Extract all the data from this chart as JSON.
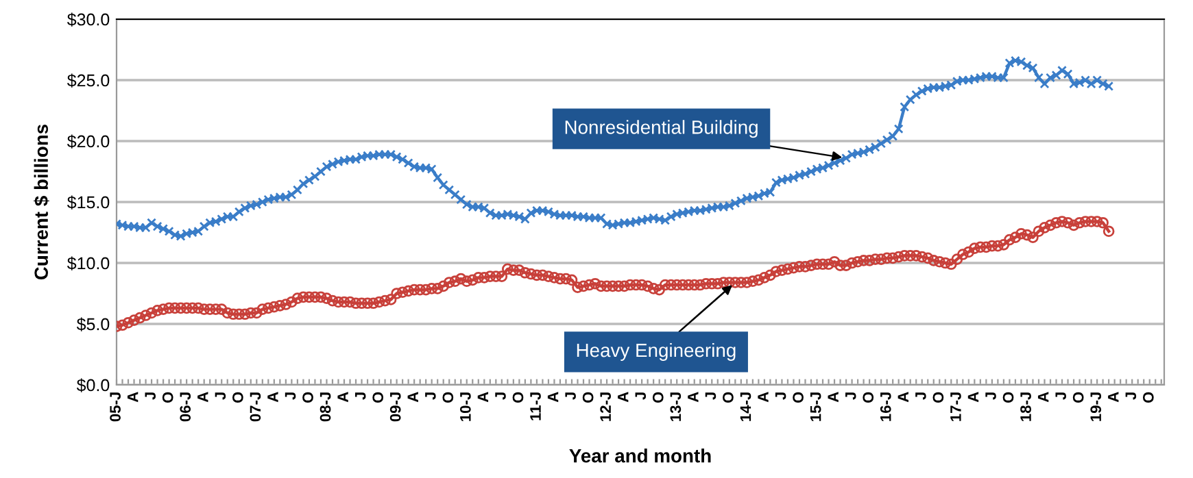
{
  "chart_data": {
    "type": "line",
    "xlabel": "Year and month",
    "ylabel": "Current $ billions",
    "categories": [
      "05-J",
      null,
      null,
      "A",
      null,
      null,
      "J",
      null,
      null,
      "O",
      null,
      null,
      "06-J",
      null,
      null,
      "A",
      null,
      null,
      "J",
      null,
      null,
      "O",
      null,
      null,
      "07-J",
      null,
      null,
      "A",
      null,
      null,
      "J",
      null,
      null,
      "O",
      null,
      null,
      "08-J",
      null,
      null,
      "A",
      null,
      null,
      "J",
      null,
      null,
      "O",
      null,
      null,
      "09-J",
      null,
      null,
      "A",
      null,
      null,
      "J",
      null,
      null,
      "O",
      null,
      null,
      "10-J",
      null,
      null,
      "A",
      null,
      null,
      "J",
      null,
      null,
      "O",
      null,
      null,
      "11-J",
      null,
      null,
      "A",
      null,
      null,
      "J",
      null,
      null,
      "O",
      null,
      null,
      "12-J",
      null,
      null,
      "A",
      null,
      null,
      "J",
      null,
      null,
      "O",
      null,
      null,
      "13-J",
      null,
      null,
      "A",
      null,
      null,
      "J",
      null,
      null,
      "O",
      null,
      null,
      "14-J",
      null,
      null,
      "A",
      null,
      null,
      "J",
      null,
      null,
      "O",
      null,
      null,
      "15-J",
      null,
      null,
      "A",
      null,
      null,
      "J",
      null,
      null,
      "O",
      null,
      null,
      "16-J",
      null,
      null,
      "A",
      null,
      null,
      "J",
      null,
      null,
      "O",
      null,
      null,
      "17-J",
      null,
      null,
      "A",
      null,
      null,
      "J",
      null,
      null,
      "O",
      null,
      null,
      "18-J",
      null,
      null,
      "A",
      null,
      null,
      "J",
      null,
      null,
      "O",
      null,
      null,
      "19-J",
      null,
      null,
      "A",
      null,
      null,
      "J",
      null,
      null,
      "O",
      null,
      null
    ],
    "series": [
      {
        "name": "Nonresidential Building",
        "color": "#3a7dc8",
        "marker": "cross",
        "values": [
          13.2,
          13.1,
          13.0,
          13.0,
          12.9,
          12.9,
          13.3,
          13.0,
          12.8,
          12.6,
          12.3,
          12.2,
          12.4,
          12.5,
          12.6,
          13.0,
          13.3,
          13.4,
          13.6,
          13.8,
          13.8,
          14.2,
          14.5,
          14.7,
          14.8,
          15.0,
          15.2,
          15.3,
          15.4,
          15.4,
          15.6,
          16.0,
          16.5,
          16.8,
          17.1,
          17.5,
          17.9,
          18.1,
          18.3,
          18.4,
          18.5,
          18.5,
          18.7,
          18.8,
          18.8,
          18.9,
          18.9,
          18.9,
          18.7,
          18.5,
          18.2,
          17.9,
          17.8,
          17.8,
          17.7,
          17.0,
          16.4,
          16.0,
          15.6,
          15.2,
          14.8,
          14.6,
          14.6,
          14.5,
          14.1,
          13.9,
          13.9,
          14.0,
          13.9,
          13.8,
          13.6,
          14.1,
          14.3,
          14.3,
          14.2,
          14.0,
          13.9,
          13.9,
          13.9,
          13.8,
          13.8,
          13.7,
          13.7,
          13.7,
          13.2,
          13.1,
          13.2,
          13.3,
          13.3,
          13.4,
          13.5,
          13.6,
          13.7,
          13.6,
          13.5,
          13.8,
          14.0,
          14.1,
          14.2,
          14.3,
          14.3,
          14.4,
          14.5,
          14.6,
          14.6,
          14.7,
          14.9,
          15.1,
          15.3,
          15.4,
          15.5,
          15.7,
          15.8,
          16.6,
          16.8,
          16.9,
          17.0,
          17.2,
          17.3,
          17.5,
          17.7,
          17.8,
          18.0,
          18.2,
          18.4,
          18.6,
          18.9,
          19.0,
          19.1,
          19.3,
          19.5,
          19.8,
          20.1,
          20.4,
          21.0,
          22.8,
          23.4,
          23.8,
          24.1,
          24.3,
          24.4,
          24.4,
          24.5,
          24.6,
          24.9,
          25.0,
          25.0,
          25.1,
          25.2,
          25.3,
          25.3,
          25.2,
          25.2,
          26.4,
          26.6,
          26.5,
          26.2,
          26.0,
          25.2,
          24.7,
          25.2,
          25.4,
          25.8,
          25.5,
          24.7,
          24.8,
          25.0,
          24.7,
          25.0,
          24.7,
          24.5,
          null,
          null,
          null,
          null,
          null,
          null,
          null,
          null,
          null
        ]
      },
      {
        "name": "Heavy Engineering",
        "color": "#c8403a",
        "marker": "circle",
        "values": [
          4.8,
          4.9,
          5.1,
          5.3,
          5.5,
          5.7,
          5.9,
          6.1,
          6.2,
          6.3,
          6.3,
          6.3,
          6.3,
          6.3,
          6.3,
          6.2,
          6.2,
          6.2,
          6.2,
          5.9,
          5.8,
          5.8,
          5.8,
          5.9,
          5.9,
          6.2,
          6.3,
          6.4,
          6.5,
          6.6,
          6.8,
          7.1,
          7.2,
          7.2,
          7.2,
          7.2,
          7.1,
          6.9,
          6.8,
          6.8,
          6.8,
          6.7,
          6.7,
          6.7,
          6.7,
          6.8,
          6.9,
          7.0,
          7.5,
          7.6,
          7.7,
          7.8,
          7.8,
          7.8,
          7.9,
          7.9,
          8.1,
          8.4,
          8.5,
          8.7,
          8.5,
          8.6,
          8.8,
          8.8,
          8.9,
          8.9,
          8.9,
          9.5,
          9.4,
          9.4,
          9.2,
          9.1,
          9.0,
          9.0,
          8.9,
          8.8,
          8.7,
          8.7,
          8.6,
          8.0,
          8.1,
          8.2,
          8.3,
          8.1,
          8.1,
          8.1,
          8.1,
          8.1,
          8.2,
          8.2,
          8.2,
          8.1,
          7.9,
          7.8,
          8.2,
          8.2,
          8.2,
          8.2,
          8.2,
          8.2,
          8.2,
          8.3,
          8.3,
          8.3,
          8.4,
          8.4,
          8.4,
          8.4,
          8.4,
          8.5,
          8.6,
          8.8,
          9.0,
          9.3,
          9.4,
          9.5,
          9.6,
          9.7,
          9.7,
          9.8,
          9.9,
          9.9,
          9.9,
          10.1,
          9.8,
          9.8,
          10.0,
          10.1,
          10.2,
          10.2,
          10.3,
          10.3,
          10.4,
          10.4,
          10.5,
          10.6,
          10.6,
          10.6,
          10.5,
          10.4,
          10.2,
          10.1,
          10.0,
          9.9,
          10.3,
          10.7,
          10.9,
          11.2,
          11.3,
          11.3,
          11.4,
          11.4,
          11.5,
          11.9,
          12.1,
          12.4,
          12.3,
          12.1,
          12.6,
          12.9,
          13.1,
          13.3,
          13.4,
          13.3,
          13.1,
          13.3,
          13.4,
          13.4,
          13.4,
          13.3,
          12.6,
          null,
          null,
          null,
          null,
          null,
          null,
          null,
          null,
          null
        ]
      }
    ],
    "ylim": [
      0,
      30
    ],
    "yticks": [
      {
        "value": 0,
        "label": "$0.0"
      },
      {
        "value": 5,
        "label": "$5.0"
      },
      {
        "value": 10,
        "label": "$10.0"
      },
      {
        "value": 15,
        "label": "$15.0"
      },
      {
        "value": 20,
        "label": "$20.0"
      },
      {
        "value": 25,
        "label": "$25.0"
      },
      {
        "value": 30,
        "label": "$30.0"
      }
    ],
    "grid": "y",
    "legend": false,
    "line_style": "solid"
  }
}
